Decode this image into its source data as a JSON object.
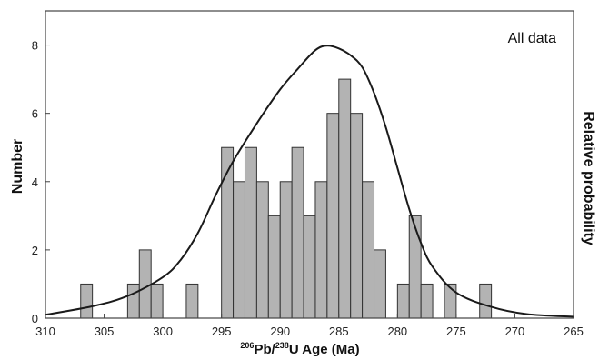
{
  "chart_data": {
    "type": "bar",
    "annotation": "All data",
    "xlabel": {
      "pre_sup": "206",
      "mid": "Pb/",
      "mid_sup": "238",
      "post": "U Age (Ma)"
    },
    "ylabel": "Number",
    "y2label": "Relative probability",
    "x_reversed": true,
    "xlim": [
      310,
      265
    ],
    "ylim": [
      0,
      9
    ],
    "x_ticks": [
      310,
      305,
      300,
      295,
      290,
      285,
      280,
      275,
      270,
      265
    ],
    "y_ticks": [
      0,
      2,
      4,
      6,
      8
    ],
    "bin_width": 1,
    "bars": [
      {
        "x": 306.5,
        "value": 1
      },
      {
        "x": 302.5,
        "value": 1
      },
      {
        "x": 301.5,
        "value": 2
      },
      {
        "x": 300.5,
        "value": 1
      },
      {
        "x": 297.5,
        "value": 1
      },
      {
        "x": 294.5,
        "value": 5
      },
      {
        "x": 293.5,
        "value": 4
      },
      {
        "x": 292.5,
        "value": 5
      },
      {
        "x": 291.5,
        "value": 4
      },
      {
        "x": 290.5,
        "value": 3
      },
      {
        "x": 289.5,
        "value": 4
      },
      {
        "x": 288.5,
        "value": 5
      },
      {
        "x": 287.5,
        "value": 3
      },
      {
        "x": 286.5,
        "value": 4
      },
      {
        "x": 285.5,
        "value": 6
      },
      {
        "x": 284.5,
        "value": 7
      },
      {
        "x": 283.5,
        "value": 6
      },
      {
        "x": 282.5,
        "value": 4
      },
      {
        "x": 281.5,
        "value": 2
      },
      {
        "x": 279.5,
        "value": 1
      },
      {
        "x": 278.5,
        "value": 3
      },
      {
        "x": 277.5,
        "value": 1
      },
      {
        "x": 275.5,
        "value": 1
      },
      {
        "x": 272.5,
        "value": 1
      }
    ],
    "probability_curve": [
      {
        "x": 310,
        "y": 0.1
      },
      {
        "x": 306,
        "y": 0.35
      },
      {
        "x": 303,
        "y": 0.65
      },
      {
        "x": 300,
        "y": 1.2
      },
      {
        "x": 298.5,
        "y": 1.7
      },
      {
        "x": 297,
        "y": 2.5
      },
      {
        "x": 295.5,
        "y": 3.6
      },
      {
        "x": 294,
        "y": 4.6
      },
      {
        "x": 292,
        "y": 5.7
      },
      {
        "x": 290,
        "y": 6.7
      },
      {
        "x": 288.5,
        "y": 7.3
      },
      {
        "x": 287,
        "y": 7.85
      },
      {
        "x": 286,
        "y": 7.98
      },
      {
        "x": 285,
        "y": 7.9
      },
      {
        "x": 284,
        "y": 7.7
      },
      {
        "x": 283,
        "y": 7.35
      },
      {
        "x": 282,
        "y": 6.6
      },
      {
        "x": 281,
        "y": 5.6
      },
      {
        "x": 280,
        "y": 4.4
      },
      {
        "x": 279,
        "y": 3.2
      },
      {
        "x": 278,
        "y": 2.2
      },
      {
        "x": 277,
        "y": 1.5
      },
      {
        "x": 275,
        "y": 0.75
      },
      {
        "x": 272,
        "y": 0.33
      },
      {
        "x": 269,
        "y": 0.12
      },
      {
        "x": 265,
        "y": 0.04
      }
    ],
    "colors": {
      "bar_fill": "#b3b3b3",
      "bar_stroke": "#333333",
      "curve": "#1a1a1a",
      "axis": "#444444"
    }
  }
}
